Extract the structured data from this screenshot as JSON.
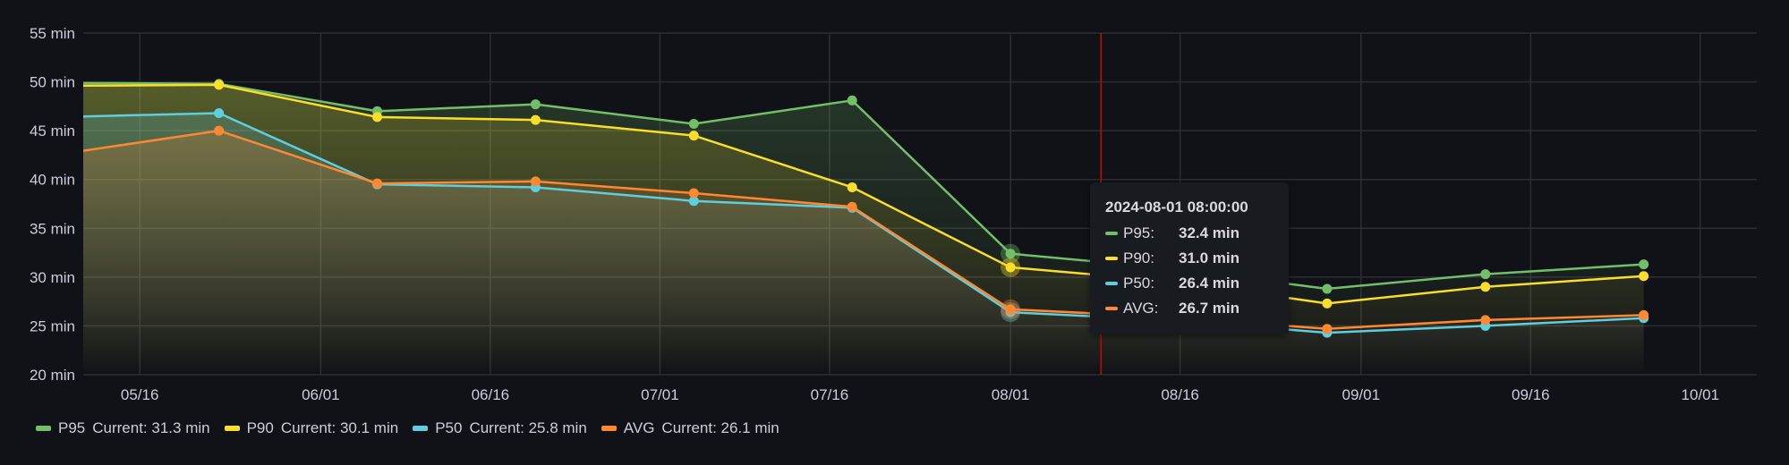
{
  "chart_data": {
    "type": "area",
    "ylim": [
      20,
      55
    ],
    "yunit": "min",
    "yticks": [
      "20 min",
      "25 min",
      "30 min",
      "35 min",
      "40 min",
      "45 min",
      "50 min",
      "55 min"
    ],
    "xlim": [
      "2024-05-11",
      "2024-10-06"
    ],
    "xticks": [
      "05/16",
      "06/01",
      "06/16",
      "07/01",
      "07/16",
      "08/01",
      "08/16",
      "09/01",
      "09/16",
      "10/01"
    ],
    "xtick_dates": [
      "2024-05-16",
      "2024-06-01",
      "2024-06-16",
      "2024-07-01",
      "2024-07-16",
      "2024-08-01",
      "2024-08-16",
      "2024-09-01",
      "2024-09-16",
      "2024-10-01"
    ],
    "grid": true,
    "legend_placement": "bottom-left",
    "x": [
      "2024-05-09",
      "2024-05-23",
      "2024-06-06",
      "2024-06-20",
      "2024-07-04",
      "2024-07-18",
      "2024-08-01",
      "2024-08-15",
      "2024-08-29",
      "2024-09-12",
      "2024-09-26"
    ],
    "series": [
      {
        "name": "P95",
        "color": "#73bf69",
        "values": [
          49.9,
          49.8,
          47.0,
          47.7,
          45.7,
          48.1,
          32.4,
          30.9,
          28.8,
          30.3,
          31.3
        ]
      },
      {
        "name": "P90",
        "color": "#fade2a",
        "values": [
          49.6,
          49.7,
          46.4,
          46.1,
          44.5,
          39.2,
          31.0,
          29.6,
          27.3,
          29.0,
          30.1
        ]
      },
      {
        "name": "P50",
        "color": "#5ecfe0",
        "values": [
          46.4,
          46.8,
          39.5,
          39.2,
          37.8,
          37.1,
          26.4,
          25.6,
          24.3,
          25.0,
          25.8
        ]
      },
      {
        "name": "AVG",
        "color": "#ff8833",
        "values": [
          42.6,
          45.0,
          39.6,
          39.8,
          38.6,
          37.2,
          26.7,
          25.9,
          24.7,
          25.6,
          26.1
        ]
      }
    ],
    "hover": {
      "x": "2024-08-01 08:00:00",
      "cursor_date": "2024-08-09"
    }
  },
  "tooltip": {
    "title": "2024-08-01 08:00:00",
    "rows": [
      {
        "name": "P95:",
        "value": "32.4 min",
        "color": "#73bf69"
      },
      {
        "name": "P90:",
        "value": "31.0 min",
        "color": "#fade2a"
      },
      {
        "name": "P50:",
        "value": "26.4 min",
        "color": "#5ecfe0"
      },
      {
        "name": "AVG:",
        "value": "26.7 min",
        "color": "#ff8833"
      }
    ]
  },
  "legend": [
    {
      "name": "P95",
      "current": "Current: 31.3 min",
      "color": "#73bf69"
    },
    {
      "name": "P90",
      "current": "Current: 30.1 min",
      "color": "#fade2a"
    },
    {
      "name": "P50",
      "current": "Current: 25.8 min",
      "color": "#5ecfe0"
    },
    {
      "name": "AVG",
      "current": "Current: 26.1 min",
      "color": "#ff8833"
    }
  ]
}
